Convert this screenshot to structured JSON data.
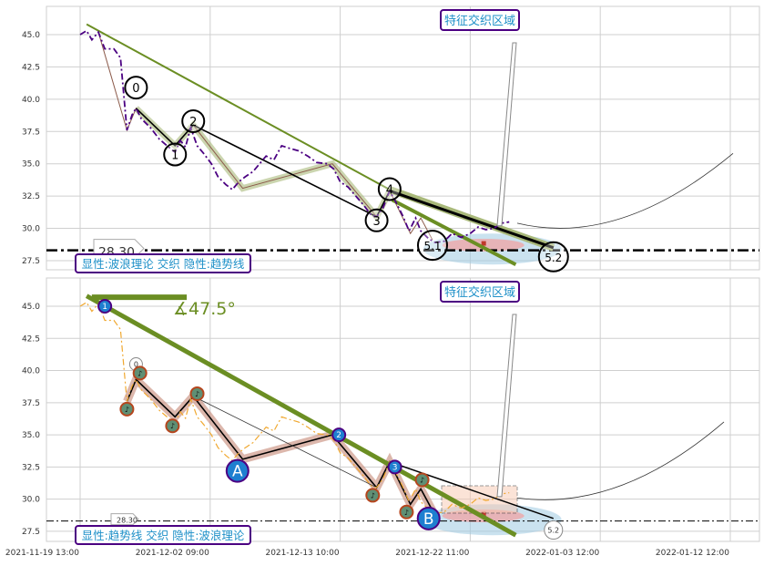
{
  "chart_data": [
    {
      "type": "line",
      "panel": "top",
      "x_tick_labels": [
        "2021-11-19 13:00",
        "2021-12-02 09:00",
        "2021-12-13 10:00",
        "2021-12-22 11:00",
        "2022-01-03 12:00",
        "2022-01-12 12:00"
      ],
      "y_ticks": [
        "27.5",
        "30.0",
        "32.5",
        "35.0",
        "37.5",
        "40.0",
        "42.5",
        "45.0"
      ],
      "ylim": [
        26.8,
        47.2
      ],
      "grid": true,
      "price_color": "#4b0082",
      "level": {
        "value": 28.3,
        "label": "28.30"
      },
      "wave_labels": [
        {
          "label": "0",
          "x": 0.43,
          "y": 39.3
        },
        {
          "label": "1",
          "x": 0.73,
          "y": 36.4
        },
        {
          "label": "2",
          "x": 0.87,
          "y": 38.0
        },
        {
          "label": "3",
          "x": 2.28,
          "y": 30.9
        },
        {
          "label": "4",
          "x": 2.38,
          "y": 32.9
        },
        {
          "label": "5.1",
          "x": 2.71,
          "y": 28.9
        },
        {
          "label": "5.2",
          "x": 3.64,
          "y": 28.5
        }
      ],
      "zone_title": "特征交织区域",
      "legend_box": "显性:波浪理论 交织 隐性:趋势线"
    },
    {
      "type": "line",
      "panel": "bottom",
      "x_tick_labels": [
        "2021-11-19 13:00",
        "2021-12-02 09:00",
        "2021-12-13 10:00",
        "2021-12-22 11:00",
        "2022-01-03 12:00",
        "2022-01-12 12:00"
      ],
      "y_ticks": [
        "27.5",
        "30.0",
        "32.5",
        "35.0",
        "37.5",
        "40.0",
        "42.5",
        "45.0"
      ],
      "ylim": [
        26.8,
        47.2
      ],
      "grid": true,
      "price_color": "#f0a830",
      "level": {
        "value": 28.3,
        "label": "28.30"
      },
      "wave_labels": [
        {
          "label": "1",
          "x": 0.19,
          "y": 45.0
        },
        {
          "label": "2",
          "x": 1.99,
          "y": 35.0
        },
        {
          "label": "3",
          "x": 2.42,
          "y": 32.5
        },
        {
          "label": "A",
          "x": 1.21,
          "y": 32.2
        },
        {
          "label": "B",
          "x": 2.68,
          "y": 28.5
        },
        {
          "label": "0",
          "x": 0.43,
          "y": 40.5
        },
        {
          "label": "5.2",
          "x": 3.64,
          "y": 27.6
        }
      ],
      "angle_label": "∡47.5°",
      "zone_title": "特征交织区域",
      "legend_box": "显性:趋势线 交织 隐性:波浪理论"
    }
  ],
  "price_series": [
    [
      0,
      45.0
    ],
    [
      0.05,
      45.3
    ],
    [
      0.09,
      44.6
    ],
    [
      0.14,
      45.2
    ],
    [
      0.19,
      43.9
    ],
    [
      0.26,
      43.9
    ],
    [
      0.31,
      43.2
    ],
    [
      0.36,
      37.6
    ],
    [
      0.4,
      38.8
    ],
    [
      0.43,
      39.3
    ],
    [
      0.47,
      38.5
    ],
    [
      0.54,
      37.8
    ],
    [
      0.61,
      36.9
    ],
    [
      0.68,
      36.3
    ],
    [
      0.73,
      35.9
    ],
    [
      0.77,
      36.8
    ],
    [
      0.81,
      36.3
    ],
    [
      0.85,
      37.8
    ],
    [
      0.9,
      36.4
    ],
    [
      0.95,
      35.8
    ],
    [
      1.01,
      35.0
    ],
    [
      1.06,
      34.0
    ],
    [
      1.12,
      33.4
    ],
    [
      1.17,
      33.0
    ],
    [
      1.22,
      33.6
    ],
    [
      1.27,
      34.0
    ],
    [
      1.33,
      34.4
    ],
    [
      1.38,
      35.0
    ],
    [
      1.43,
      35.6
    ],
    [
      1.49,
      35.3
    ],
    [
      1.55,
      36.4
    ],
    [
      1.61,
      36.2
    ],
    [
      1.68,
      36.0
    ],
    [
      1.75,
      35.6
    ],
    [
      1.82,
      35.1
    ],
    [
      1.9,
      35.0
    ],
    [
      1.95,
      34.6
    ],
    [
      2.0,
      33.6
    ],
    [
      2.06,
      33.2
    ],
    [
      2.12,
      32.5
    ],
    [
      2.18,
      31.8
    ],
    [
      2.24,
      31.0
    ],
    [
      2.28,
      30.9
    ],
    [
      2.33,
      31.6
    ],
    [
      2.38,
      32.9
    ],
    [
      2.43,
      32.0
    ],
    [
      2.48,
      31.0
    ],
    [
      2.53,
      29.8
    ],
    [
      2.58,
      30.8
    ],
    [
      2.62,
      29.8
    ],
    [
      2.68,
      29.2
    ],
    [
      2.73,
      28.9
    ],
    [
      2.8,
      29.0
    ],
    [
      2.86,
      29.6
    ],
    [
      2.93,
      29.3
    ],
    [
      3.0,
      29.6
    ],
    [
      3.06,
      30.1
    ],
    [
      3.12,
      29.9
    ],
    [
      3.18,
      30.0
    ],
    [
      3.24,
      30.4
    ],
    [
      3.3,
      30.5
    ]
  ],
  "zigzag": [
    [
      0.14,
      45.2
    ],
    [
      0.36,
      37.6
    ],
    [
      0.43,
      39.3
    ],
    [
      0.73,
      36.4
    ],
    [
      0.87,
      38.0
    ],
    [
      1.25,
      33.1
    ],
    [
      1.94,
      35.0
    ],
    [
      2.28,
      30.9
    ],
    [
      2.38,
      32.9
    ],
    [
      2.54,
      29.6
    ],
    [
      2.62,
      30.8
    ],
    [
      2.71,
      29.1
    ]
  ],
  "colors": {
    "trend_green": "#6b8e23",
    "zone_title_border": "#4b0082",
    "zone_title_text": "#1e90c8",
    "wave_blue": "#1e7fd0"
  }
}
